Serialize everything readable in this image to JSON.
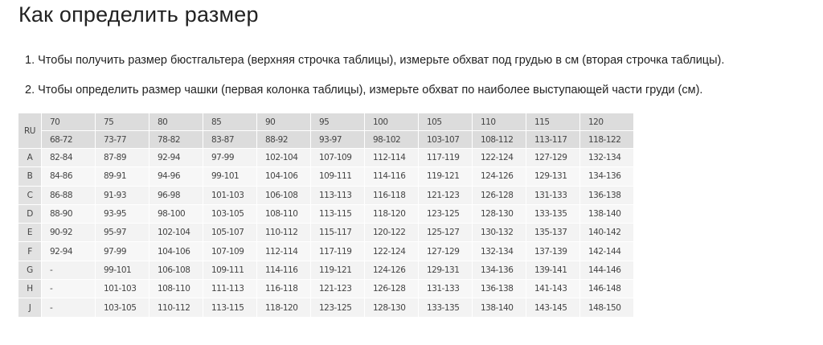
{
  "title": "Как определить размер",
  "instructions": [
    "1. Чтобы получить размер бюстгальтера (верхняя строчка таблицы), измерьте обхват под грудью в см (вторая строчка таблицы).",
    "2. Чтобы определить размер чашки (первая колонка таблицы), измерьте обхват по наиболее выступающей части груди (см)."
  ],
  "table": {
    "corner": "RU",
    "band_sizes": [
      "70",
      "75",
      "80",
      "85",
      "90",
      "95",
      "100",
      "105",
      "110",
      "115",
      "120"
    ],
    "underbust": [
      "68-72",
      "73-77",
      "78-82",
      "83-87",
      "88-92",
      "93-97",
      "98-102",
      "103-107",
      "108-112",
      "113-117",
      "118-122"
    ],
    "rows": [
      {
        "cup": "A",
        "values": [
          "82-84",
          "87-89",
          "92-94",
          "97-99",
          "102-104",
          "107-109",
          "112-114",
          "117-119",
          "122-124",
          "127-129",
          "132-134"
        ]
      },
      {
        "cup": "B",
        "values": [
          "84-86",
          "89-91",
          "94-96",
          "99-101",
          "104-106",
          "109-111",
          "114-116",
          "119-121",
          "124-126",
          "129-131",
          "134-136"
        ]
      },
      {
        "cup": "C",
        "values": [
          "86-88",
          "91-93",
          "96-98",
          "101-103",
          "106-108",
          "113-113",
          "116-118",
          "121-123",
          "126-128",
          "131-133",
          "136-138"
        ]
      },
      {
        "cup": "D",
        "values": [
          "88-90",
          "93-95",
          "98-100",
          "103-105",
          "108-110",
          "113-115",
          "118-120",
          "123-125",
          "128-130",
          "133-135",
          "138-140"
        ]
      },
      {
        "cup": "E",
        "values": [
          "90-92",
          "95-97",
          "102-104",
          "105-107",
          "110-112",
          "115-117",
          "120-122",
          "125-127",
          "130-132",
          "135-137",
          "140-142"
        ]
      },
      {
        "cup": "F",
        "values": [
          "92-94",
          "97-99",
          "104-106",
          "107-109",
          "112-114",
          "117-119",
          "122-124",
          "127-129",
          "132-134",
          "137-139",
          "142-144"
        ]
      },
      {
        "cup": "G",
        "values": [
          "-",
          "99-101",
          "106-108",
          "109-111",
          "114-116",
          "119-121",
          "124-126",
          "129-131",
          "134-136",
          "139-141",
          "144-146"
        ]
      },
      {
        "cup": "H",
        "values": [
          "-",
          "101-103",
          "108-110",
          "111-113",
          "116-118",
          "121-123",
          "126-128",
          "131-133",
          "136-138",
          "141-143",
          "146-148"
        ]
      },
      {
        "cup": "J",
        "values": [
          "-",
          "103-105",
          "110-112",
          "113-115",
          "118-120",
          "123-125",
          "128-130",
          "133-135",
          "138-140",
          "143-145",
          "148-150"
        ]
      }
    ]
  }
}
